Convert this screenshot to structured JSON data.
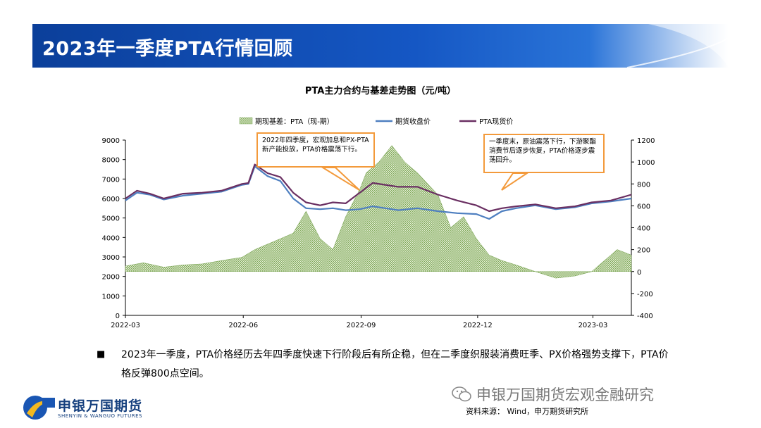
{
  "slide_title": "2023年一季度PTA行情回顾",
  "chart_data": {
    "type": "area+line",
    "title": "PTA主力合约与基差走势图（元/吨）",
    "legend": [
      "期现基差：PTA（现-期）",
      "期货收盘价",
      "PTA现货价"
    ],
    "legend_position": "top",
    "x_ticks": [
      "2022-03",
      "2022-06",
      "2022-09",
      "2022-12",
      "2023-03"
    ],
    "y_left_ticks": [
      0,
      1000,
      2000,
      3000,
      4000,
      5000,
      6000,
      7000,
      8000,
      9000
    ],
    "y_right_ticks": [
      -400,
      -200,
      0,
      200,
      400,
      600,
      800,
      1000,
      1200
    ],
    "y_left_range": [
      0,
      9000
    ],
    "y_right_range": [
      -400,
      1200
    ],
    "x_range": [
      "2022-03-01",
      "2023-03-31"
    ],
    "grid": false,
    "series": [
      {
        "name": "PTA现货价",
        "color": "#6a2f62",
        "axis": "left",
        "points": [
          [
            "2022-03-01",
            6000
          ],
          [
            "2022-03-10",
            6400
          ],
          [
            "2022-03-20",
            6250
          ],
          [
            "2022-03-31",
            6000
          ],
          [
            "2022-04-15",
            6250
          ],
          [
            "2022-04-30",
            6300
          ],
          [
            "2022-05-15",
            6400
          ],
          [
            "2022-05-31",
            6750
          ],
          [
            "2022-06-05",
            6800
          ],
          [
            "2022-06-10",
            7750
          ],
          [
            "2022-06-20",
            7300
          ],
          [
            "2022-06-30",
            7100
          ],
          [
            "2022-07-10",
            6300
          ],
          [
            "2022-07-20",
            5800
          ],
          [
            "2022-07-31",
            5650
          ],
          [
            "2022-08-10",
            5800
          ],
          [
            "2022-08-20",
            5750
          ],
          [
            "2022-08-31",
            6300
          ],
          [
            "2022-09-10",
            6800
          ],
          [
            "2022-09-20",
            6700
          ],
          [
            "2022-09-30",
            6600
          ],
          [
            "2022-10-15",
            6600
          ],
          [
            "2022-10-31",
            6200
          ],
          [
            "2022-11-15",
            5900
          ],
          [
            "2022-11-30",
            5650
          ],
          [
            "2022-12-10",
            5350
          ],
          [
            "2022-12-20",
            5500
          ],
          [
            "2022-12-31",
            5600
          ],
          [
            "2023-01-15",
            5700
          ],
          [
            "2023-01-31",
            5500
          ],
          [
            "2023-02-15",
            5600
          ],
          [
            "2023-02-28",
            5800
          ],
          [
            "2023-03-15",
            5900
          ],
          [
            "2023-03-31",
            6200
          ]
        ]
      },
      {
        "name": "期货收盘价",
        "color": "#4e7fc0",
        "axis": "left",
        "points": [
          [
            "2022-03-01",
            5900
          ],
          [
            "2022-03-10",
            6300
          ],
          [
            "2022-03-20",
            6200
          ],
          [
            "2022-03-31",
            5950
          ],
          [
            "2022-04-15",
            6150
          ],
          [
            "2022-04-30",
            6250
          ],
          [
            "2022-05-15",
            6350
          ],
          [
            "2022-05-31",
            6700
          ],
          [
            "2022-06-05",
            6750
          ],
          [
            "2022-06-10",
            7650
          ],
          [
            "2022-06-20",
            7150
          ],
          [
            "2022-06-30",
            6900
          ],
          [
            "2022-07-10",
            6000
          ],
          [
            "2022-07-20",
            5500
          ],
          [
            "2022-07-31",
            5450
          ],
          [
            "2022-08-10",
            5500
          ],
          [
            "2022-08-20",
            5400
          ],
          [
            "2022-08-31",
            5450
          ],
          [
            "2022-09-10",
            5600
          ],
          [
            "2022-09-20",
            5500
          ],
          [
            "2022-09-30",
            5400
          ],
          [
            "2022-10-15",
            5500
          ],
          [
            "2022-10-31",
            5350
          ],
          [
            "2022-11-15",
            5250
          ],
          [
            "2022-11-30",
            5200
          ],
          [
            "2022-12-10",
            4950
          ],
          [
            "2022-12-20",
            5350
          ],
          [
            "2022-12-31",
            5500
          ],
          [
            "2023-01-15",
            5650
          ],
          [
            "2023-01-31",
            5450
          ],
          [
            "2023-02-15",
            5550
          ],
          [
            "2023-02-28",
            5750
          ],
          [
            "2023-03-15",
            5850
          ],
          [
            "2023-03-31",
            6000
          ]
        ]
      },
      {
        "name": "期现基差：PTA（现-期）",
        "color": "#8fb86a",
        "axis": "right",
        "points": [
          [
            "2022-03-01",
            50
          ],
          [
            "2022-03-15",
            80
          ],
          [
            "2022-03-31",
            40
          ],
          [
            "2022-04-15",
            60
          ],
          [
            "2022-04-30",
            70
          ],
          [
            "2022-05-15",
            100
          ],
          [
            "2022-05-31",
            130
          ],
          [
            "2022-06-10",
            200
          ],
          [
            "2022-06-20",
            250
          ],
          [
            "2022-06-30",
            300
          ],
          [
            "2022-07-10",
            350
          ],
          [
            "2022-07-20",
            550
          ],
          [
            "2022-07-31",
            300
          ],
          [
            "2022-08-10",
            200
          ],
          [
            "2022-08-20",
            500
          ],
          [
            "2022-08-31",
            750
          ],
          [
            "2022-09-05",
            900
          ],
          [
            "2022-09-15",
            1000
          ],
          [
            "2022-09-25",
            1150
          ],
          [
            "2022-10-05",
            1000
          ],
          [
            "2022-10-15",
            900
          ],
          [
            "2022-10-31",
            700
          ],
          [
            "2022-11-10",
            400
          ],
          [
            "2022-11-20",
            500
          ],
          [
            "2022-11-30",
            300
          ],
          [
            "2022-12-10",
            150
          ],
          [
            "2022-12-20",
            100
          ],
          [
            "2022-12-31",
            60
          ],
          [
            "2023-01-15",
            0
          ],
          [
            "2023-01-31",
            -60
          ],
          [
            "2023-02-15",
            -40
          ],
          [
            "2023-02-28",
            0
          ],
          [
            "2023-03-10",
            100
          ],
          [
            "2023-03-20",
            200
          ],
          [
            "2023-03-31",
            150
          ]
        ]
      }
    ],
    "annotations": [
      "2022年四季度，宏观加息和PX-PTA新产能投放，PTA价格震荡下行。",
      "一季度末，原油震荡下行，下游聚酯消费节后逐步恢复，PTA价格逐步震荡回升。"
    ]
  },
  "bullet_text": "2023年一季度，PTA价格经历去年四季度快速下行阶段后有所企稳，但在二季度织服装消费旺季、PX价格强势支撑下，PTA价格反弹800点空间。",
  "logo": {
    "name": "申银万国期货",
    "sub": "SHENYIN & WANGUO FUTURES"
  },
  "watermark": "申银万国期货宏观金融研究",
  "source": "资料来源： Wind，申万期货研究所"
}
